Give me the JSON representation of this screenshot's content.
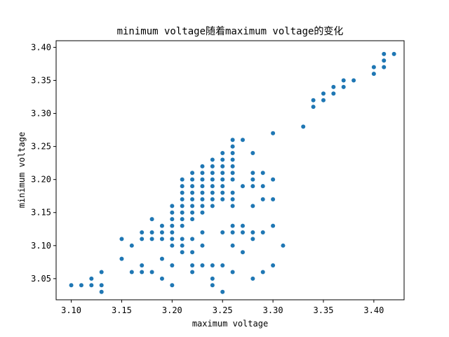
{
  "chart_data": {
    "type": "scatter",
    "title": "minimum voltage随着maximum voltage的变化",
    "xlabel": "maximum voltage",
    "ylabel": "minimum voltage",
    "xlim": [
      3.085,
      3.43
    ],
    "ylim": [
      3.018,
      3.41
    ],
    "xticks": [
      "3.10",
      "3.15",
      "3.20",
      "3.25",
      "3.30",
      "3.35",
      "3.40"
    ],
    "yticks": [
      "3.05",
      "3.10",
      "3.15",
      "3.20",
      "3.25",
      "3.30",
      "3.35",
      "3.40"
    ],
    "grid": false,
    "color": "#1f77b4",
    "points": [
      [
        3.1,
        3.04
      ],
      [
        3.11,
        3.04
      ],
      [
        3.12,
        3.04
      ],
      [
        3.12,
        3.05
      ],
      [
        3.13,
        3.03
      ],
      [
        3.13,
        3.04
      ],
      [
        3.13,
        3.06
      ],
      [
        3.15,
        3.08
      ],
      [
        3.15,
        3.11
      ],
      [
        3.16,
        3.06
      ],
      [
        3.16,
        3.1
      ],
      [
        3.17,
        3.06
      ],
      [
        3.17,
        3.07
      ],
      [
        3.17,
        3.11
      ],
      [
        3.17,
        3.12
      ],
      [
        3.18,
        3.06
      ],
      [
        3.18,
        3.11
      ],
      [
        3.18,
        3.12
      ],
      [
        3.18,
        3.14
      ],
      [
        3.19,
        3.05
      ],
      [
        3.19,
        3.08
      ],
      [
        3.19,
        3.11
      ],
      [
        3.19,
        3.12
      ],
      [
        3.19,
        3.13
      ],
      [
        3.2,
        3.04
      ],
      [
        3.2,
        3.07
      ],
      [
        3.2,
        3.1
      ],
      [
        3.2,
        3.11
      ],
      [
        3.2,
        3.12
      ],
      [
        3.2,
        3.13
      ],
      [
        3.2,
        3.14
      ],
      [
        3.2,
        3.15
      ],
      [
        3.2,
        3.16
      ],
      [
        3.21,
        3.09
      ],
      [
        3.21,
        3.1
      ],
      [
        3.21,
        3.11
      ],
      [
        3.21,
        3.13
      ],
      [
        3.21,
        3.14
      ],
      [
        3.21,
        3.15
      ],
      [
        3.21,
        3.16
      ],
      [
        3.21,
        3.17
      ],
      [
        3.21,
        3.18
      ],
      [
        3.21,
        3.19
      ],
      [
        3.21,
        3.2
      ],
      [
        3.22,
        3.06
      ],
      [
        3.22,
        3.07
      ],
      [
        3.22,
        3.09
      ],
      [
        3.22,
        3.11
      ],
      [
        3.22,
        3.14
      ],
      [
        3.22,
        3.15
      ],
      [
        3.22,
        3.16
      ],
      [
        3.22,
        3.17
      ],
      [
        3.22,
        3.18
      ],
      [
        3.22,
        3.19
      ],
      [
        3.22,
        3.2
      ],
      [
        3.22,
        3.21
      ],
      [
        3.23,
        3.07
      ],
      [
        3.23,
        3.1
      ],
      [
        3.23,
        3.12
      ],
      [
        3.23,
        3.15
      ],
      [
        3.23,
        3.16
      ],
      [
        3.23,
        3.17
      ],
      [
        3.23,
        3.18
      ],
      [
        3.23,
        3.19
      ],
      [
        3.23,
        3.2
      ],
      [
        3.23,
        3.21
      ],
      [
        3.23,
        3.22
      ],
      [
        3.24,
        3.04
      ],
      [
        3.24,
        3.05
      ],
      [
        3.24,
        3.07
      ],
      [
        3.24,
        3.16
      ],
      [
        3.24,
        3.17
      ],
      [
        3.24,
        3.18
      ],
      [
        3.24,
        3.19
      ],
      [
        3.24,
        3.2
      ],
      [
        3.24,
        3.21
      ],
      [
        3.24,
        3.22
      ],
      [
        3.24,
        3.23
      ],
      [
        3.25,
        3.03
      ],
      [
        3.25,
        3.07
      ],
      [
        3.25,
        3.12
      ],
      [
        3.25,
        3.17
      ],
      [
        3.25,
        3.18
      ],
      [
        3.25,
        3.19
      ],
      [
        3.25,
        3.2
      ],
      [
        3.25,
        3.21
      ],
      [
        3.25,
        3.22
      ],
      [
        3.25,
        3.23
      ],
      [
        3.25,
        3.24
      ],
      [
        3.26,
        3.06
      ],
      [
        3.26,
        3.1
      ],
      [
        3.26,
        3.12
      ],
      [
        3.26,
        3.13
      ],
      [
        3.26,
        3.16
      ],
      [
        3.26,
        3.17
      ],
      [
        3.26,
        3.18
      ],
      [
        3.26,
        3.2
      ],
      [
        3.26,
        3.21
      ],
      [
        3.26,
        3.22
      ],
      [
        3.26,
        3.23
      ],
      [
        3.26,
        3.24
      ],
      [
        3.26,
        3.25
      ],
      [
        3.26,
        3.26
      ],
      [
        3.27,
        3.09
      ],
      [
        3.27,
        3.12
      ],
      [
        3.27,
        3.13
      ],
      [
        3.27,
        3.19
      ],
      [
        3.27,
        3.26
      ],
      [
        3.28,
        3.05
      ],
      [
        3.28,
        3.11
      ],
      [
        3.28,
        3.12
      ],
      [
        3.28,
        3.16
      ],
      [
        3.28,
        3.19
      ],
      [
        3.28,
        3.2
      ],
      [
        3.28,
        3.21
      ],
      [
        3.28,
        3.24
      ],
      [
        3.29,
        3.06
      ],
      [
        3.29,
        3.12
      ],
      [
        3.29,
        3.17
      ],
      [
        3.29,
        3.19
      ],
      [
        3.29,
        3.21
      ],
      [
        3.3,
        3.07
      ],
      [
        3.3,
        3.13
      ],
      [
        3.3,
        3.17
      ],
      [
        3.3,
        3.2
      ],
      [
        3.3,
        3.27
      ],
      [
        3.31,
        3.1
      ],
      [
        3.33,
        3.28
      ],
      [
        3.34,
        3.31
      ],
      [
        3.34,
        3.32
      ],
      [
        3.35,
        3.32
      ],
      [
        3.35,
        3.33
      ],
      [
        3.36,
        3.33
      ],
      [
        3.36,
        3.34
      ],
      [
        3.37,
        3.34
      ],
      [
        3.37,
        3.35
      ],
      [
        3.38,
        3.35
      ],
      [
        3.4,
        3.36
      ],
      [
        3.4,
        3.37
      ],
      [
        3.41,
        3.37
      ],
      [
        3.41,
        3.38
      ],
      [
        3.41,
        3.39
      ],
      [
        3.42,
        3.39
      ]
    ]
  }
}
